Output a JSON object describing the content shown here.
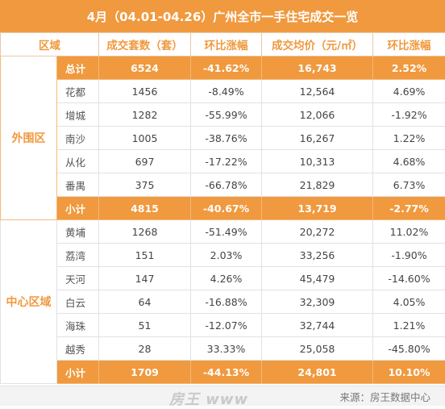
{
  "title": "4月（04.01-04.26）广州全市一手住宅成交一览",
  "headers": [
    "区域",
    "成交套数（套）",
    "环比涨幅",
    "成交均价（元/㎡）",
    "环比涨幅"
  ],
  "total_row": {
    "label": "总计",
    "units": "6524",
    "units_change": "-41.62%",
    "price": "16,743",
    "price_change": "2.52%"
  },
  "outer": {
    "region": "外围区",
    "rows": [
      {
        "name": "花都",
        "units": "1456",
        "units_change": "-8.49%",
        "price": "12,564",
        "price_change": "4.69%"
      },
      {
        "name": "增城",
        "units": "1282",
        "units_change": "-55.99%",
        "price": "12,066",
        "price_change": "-1.92%"
      },
      {
        "name": "南沙",
        "units": "1005",
        "units_change": "-38.76%",
        "price": "16,267",
        "price_change": "1.22%"
      },
      {
        "name": "从化",
        "units": "697",
        "units_change": "-17.22%",
        "price": "10,313",
        "price_change": "4.68%"
      },
      {
        "name": "番禺",
        "units": "375",
        "units_change": "-66.78%",
        "price": "21,829",
        "price_change": "6.73%"
      }
    ],
    "subtotal": {
      "label": "小计",
      "units": "4815",
      "units_change": "-40.67%",
      "price": "13,719",
      "price_change": "-2.77%"
    }
  },
  "center": {
    "region": "中心区域",
    "rows": [
      {
        "name": "黄埔",
        "units": "1268",
        "units_change": "-51.49%",
        "price": "20,272",
        "price_change": "11.02%"
      },
      {
        "name": "荔湾",
        "units": "151",
        "units_change": "2.03%",
        "price": "33,256",
        "price_change": "-1.90%"
      },
      {
        "name": "天河",
        "units": "147",
        "units_change": "4.26%",
        "price": "45,479",
        "price_change": "-14.60%"
      },
      {
        "name": "白云",
        "units": "64",
        "units_change": "-16.88%",
        "price": "32,309",
        "price_change": "4.05%"
      },
      {
        "name": "海珠",
        "units": "51",
        "units_change": "-12.07%",
        "price": "32,744",
        "price_change": "1.21%"
      },
      {
        "name": "越秀",
        "units": "28",
        "units_change": "33.33%",
        "price": "25,058",
        "price_change": "-45.80%"
      }
    ],
    "subtotal": {
      "label": "小计",
      "units": "1709",
      "units_change": "-44.13%",
      "price": "24,801",
      "price_change": "10.10%"
    }
  },
  "footer": {
    "watermark": "房王 www",
    "source": "来源：房王数据中心"
  },
  "colors": {
    "accent": "#f0993e",
    "white": "#ffffff"
  }
}
